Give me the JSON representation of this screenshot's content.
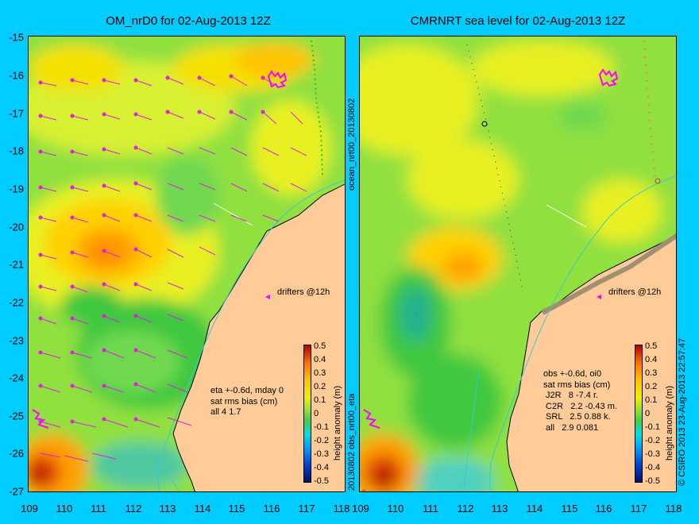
{
  "left_panel": {
    "title": "OM_nrD0 for 02-Aug-2013 12Z",
    "side_label": "20130802 obs_nrt00_eta",
    "drifters_label": "drifters @12h",
    "info_lines": [
      "eta +-0.6d, mday 0",
      "sat rms bias (cm)",
      "all 4 1.7"
    ]
  },
  "right_panel": {
    "title": "CMRNRT sea level  for 02-Aug-2013 12Z",
    "side_label": "ocean_nrt00_20130802",
    "drifters_label": "drifters @12h",
    "info_lines": [
      "obs +-0.6d, oi0",
      "sat rms bias (cm)",
      " J2R   8 -7.4 r.",
      " C2R   2.2 -0.43 m.",
      " SRL   2.5 0.88 k.",
      " all   2.9 0.081"
    ]
  },
  "axes": {
    "lat_ticks": [
      "-15",
      "-16",
      "-17",
      "-18",
      "-19",
      "-20",
      "-21",
      "-22",
      "-23",
      "-24",
      "-25",
      "-26",
      "-27"
    ],
    "lon_ticks": [
      "109",
      "110",
      "111",
      "112",
      "113",
      "114",
      "115",
      "116",
      "117",
      "118"
    ]
  },
  "colorbar": {
    "label": "height anomaly (m)",
    "ticks": [
      "0.5",
      "0.4",
      "0.3",
      "0.2",
      "0.1",
      "0",
      "-0.1",
      "-0.2",
      "-0.3",
      "-0.4",
      "-0.5"
    ]
  },
  "copyright": "© CSIRO 2013  23-Aug-2013 22:57:47",
  "colors": {
    "background": "#00ccff",
    "land": "#ffcc99",
    "drifter": "#ff00ff",
    "arrow": "#e020e0",
    "coast": "#000000",
    "shelf": "#33cccc"
  }
}
